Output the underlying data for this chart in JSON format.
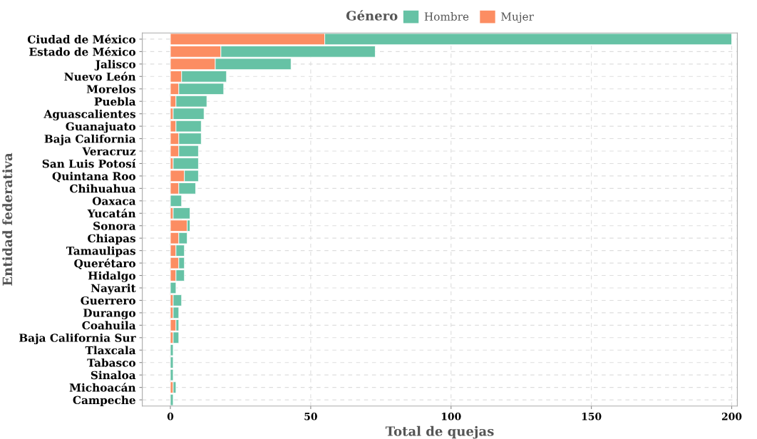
{
  "chart_data": {
    "type": "bar",
    "orientation": "horizontal",
    "stacked": true,
    "xlabel": "Total de quejas",
    "ylabel": "Entidad federativa",
    "legend_title": "Género",
    "legend": "top",
    "categories": [
      "Ciudad de México",
      "Estado de México",
      "Jalisco",
      "Nuevo León",
      "Morelos",
      "Puebla",
      "Aguascalientes",
      "Guanajuato",
      "Baja California",
      "Veracruz",
      "San Luis Potosí",
      "Quintana Roo",
      "Chihuahua",
      "Oaxaca",
      "Yucatán",
      "Sonora",
      "Chiapas",
      "Tamaulipas",
      "Querétaro",
      "Hidalgo",
      "Nayarit",
      "Guerrero",
      "Durango",
      "Coahuila",
      "Baja California Sur",
      "Tlaxcala",
      "Tabasco",
      "Sinaloa",
      "Michoacán",
      "Campeche"
    ],
    "series": [
      {
        "name": "Mujer",
        "color": "#fc8d62",
        "values": [
          55,
          18,
          16,
          4,
          3,
          2,
          1,
          2,
          3,
          3,
          1,
          5,
          3,
          0,
          1,
          6,
          3,
          2,
          3,
          2,
          0,
          1,
          1,
          2,
          1,
          0,
          0,
          0,
          1,
          0
        ]
      },
      {
        "name": "Hombre",
        "color": "#66c2a5",
        "values": [
          145,
          55,
          27,
          16,
          16,
          11,
          11,
          9,
          8,
          7,
          9,
          5,
          6,
          4,
          6,
          1,
          3,
          3,
          2,
          3,
          2,
          3,
          2,
          1,
          2,
          1,
          1,
          1,
          1,
          1
        ]
      }
    ],
    "xlim": [
      -10,
      202
    ],
    "xticks": [
      0,
      50,
      100,
      150,
      200
    ],
    "grid": true
  }
}
